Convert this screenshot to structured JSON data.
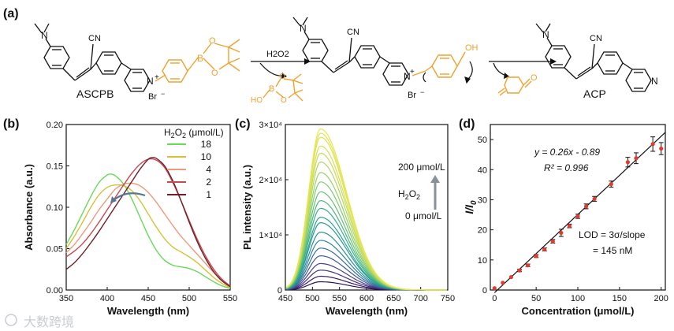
{
  "panel_labels": [
    "(a)",
    "(b)",
    "(c)",
    "(d)"
  ],
  "scheme": {
    "compound_start": "ASCPB",
    "compound_end": "ACP",
    "counterion": "Br",
    "reagent": "H2O2",
    "nme2": "N",
    "cn_label": "CN",
    "pyridinium_n": "N",
    "charge": "+",
    "ester_b": "B",
    "ester_o": "O",
    "byproduct_ho": "HO",
    "byproduct_b": "B",
    "byproduct_o": "O",
    "phenol_oh": "OH",
    "quinone_o": "O",
    "pyridine_n": "N",
    "minus": "−",
    "colors": {
      "orange": "#f0a22e"
    }
  },
  "chart_data": [
    {
      "type": "line",
      "panel": "(b)",
      "xlabel": "Wavelength (nm)",
      "ylabel": "Absorbance (a.u.)",
      "xlim": [
        350,
        550
      ],
      "ylim": [
        0.0,
        0.2
      ],
      "xticks": [
        "350",
        "400",
        "450",
        "500",
        "550"
      ],
      "yticks": [
        "0.00",
        "0.05",
        "0.10",
        "0.15",
        "0.20"
      ],
      "legend_title": "H2O2 (μmol/L)",
      "legend_placement": "top-right",
      "series": [
        {
          "name": "18",
          "color": "#6bd85a",
          "x": [
            350,
            360,
            370,
            380,
            390,
            400,
            405,
            410,
            420,
            430,
            440,
            450,
            460,
            470,
            480,
            490,
            500,
            510,
            520,
            530,
            540,
            550
          ],
          "y": [
            0.055,
            0.073,
            0.093,
            0.113,
            0.13,
            0.139,
            0.14,
            0.138,
            0.128,
            0.11,
            0.088,
            0.066,
            0.048,
            0.036,
            0.03,
            0.028,
            0.026,
            0.022,
            0.016,
            0.01,
            0.005,
            0.002
          ]
        },
        {
          "name": "10",
          "color": "#d6c23a",
          "x": [
            350,
            360,
            370,
            380,
            390,
            400,
            410,
            420,
            430,
            440,
            450,
            460,
            470,
            480,
            490,
            500,
            510,
            520,
            530,
            540,
            550
          ],
          "y": [
            0.05,
            0.065,
            0.082,
            0.1,
            0.115,
            0.124,
            0.127,
            0.126,
            0.12,
            0.108,
            0.092,
            0.076,
            0.062,
            0.052,
            0.046,
            0.04,
            0.033,
            0.024,
            0.015,
            0.008,
            0.003
          ]
        },
        {
          "name": "4",
          "color": "#ee9a7c",
          "x": [
            350,
            360,
            370,
            380,
            390,
            400,
            410,
            420,
            430,
            440,
            450,
            460,
            470,
            480,
            490,
            500,
            510,
            520,
            530,
            540,
            550
          ],
          "y": [
            0.045,
            0.055,
            0.068,
            0.082,
            0.097,
            0.11,
            0.122,
            0.128,
            0.129,
            0.126,
            0.118,
            0.106,
            0.092,
            0.078,
            0.065,
            0.054,
            0.043,
            0.032,
            0.021,
            0.012,
            0.005
          ]
        },
        {
          "name": "2",
          "color": "#c64a50",
          "x": [
            350,
            360,
            370,
            380,
            390,
            400,
            410,
            420,
            430,
            440,
            450,
            460,
            470,
            480,
            490,
            500,
            510,
            520,
            530,
            540,
            550
          ],
          "y": [
            0.04,
            0.047,
            0.056,
            0.068,
            0.082,
            0.097,
            0.112,
            0.127,
            0.141,
            0.152,
            0.158,
            0.157,
            0.148,
            0.13,
            0.108,
            0.084,
            0.061,
            0.041,
            0.025,
            0.013,
            0.005
          ]
        },
        {
          "name": "1",
          "color": "#6e1f2a",
          "x": [
            350,
            360,
            370,
            380,
            390,
            400,
            410,
            420,
            430,
            440,
            450,
            455,
            460,
            470,
            480,
            490,
            500,
            510,
            520,
            530,
            540,
            550
          ],
          "y": [
            0.025,
            0.033,
            0.044,
            0.057,
            0.071,
            0.086,
            0.101,
            0.116,
            0.131,
            0.146,
            0.158,
            0.16,
            0.159,
            0.15,
            0.132,
            0.108,
            0.082,
            0.058,
            0.038,
            0.022,
            0.011,
            0.004
          ]
        }
      ]
    },
    {
      "type": "line",
      "panel": "(c)",
      "xlabel": "Wavelength (nm)",
      "ylabel": "PL intensity (a.u.)",
      "xlim": [
        450,
        750
      ],
      "ylim": [
        0,
        30000
      ],
      "xticks": [
        "450",
        "500",
        "550",
        "600",
        "650",
        "700",
        "750"
      ],
      "yticks": [
        "0",
        "1×10⁴",
        "2×10⁴",
        "3×10⁴"
      ],
      "annotation": {
        "top": "200 μmol/L",
        "bottom": "0 μmol/L",
        "reagent": "H2O2"
      },
      "peak_wavelength_nm": 515,
      "peak_intensities": [
        1500,
        2500,
        3600,
        4800,
        6200,
        7600,
        9000,
        10500,
        12200,
        13200,
        14800,
        16200,
        17800,
        19600,
        21300,
        23200,
        24800,
        26100,
        27700,
        28400,
        29200
      ],
      "colors": [
        "#2b1150",
        "#3a1c6a",
        "#46307e",
        "#4a418a",
        "#3f5a95",
        "#37709a",
        "#2f839e",
        "#2b8e9c",
        "#2a9a96",
        "#2ea590",
        "#3aae88",
        "#4fb77f",
        "#66c177",
        "#7fc96f",
        "#99d068",
        "#b2d663",
        "#c6dc5e",
        "#d4df5a",
        "#dde256",
        "#e2e453",
        "#e8e751"
      ]
    },
    {
      "type": "scatter",
      "panel": "(d)",
      "xlabel": "Concentration (μmol/L)",
      "ylabel_main": "I/I",
      "ylabel_sub": "0",
      "xlim": [
        -5,
        205
      ],
      "ylim": [
        0,
        55
      ],
      "xticks": [
        "0",
        "50",
        "100",
        "150",
        "200"
      ],
      "yticks": [
        "0",
        "10",
        "20",
        "30",
        "40",
        "50"
      ],
      "equation": "y = 0.26x - 0.89",
      "r2_label": "R² = 0.996",
      "lod_line1": "LOD = 3σ/slope",
      "lod_line2": "= 145 nM",
      "fit": {
        "slope": 0.26,
        "intercept": -0.89
      },
      "marker_color": "#e23b2e",
      "x": [
        0,
        10,
        20,
        30,
        40,
        50,
        60,
        70,
        80,
        90,
        100,
        110,
        120,
        140,
        160,
        170,
        190,
        200
      ],
      "y": [
        0.6,
        2.4,
        4.3,
        6.5,
        8.2,
        11.3,
        13.5,
        16.2,
        19.0,
        21.3,
        24.5,
        27.8,
        30.3,
        35.2,
        42.5,
        43.8,
        48.5,
        47.0
      ],
      "err": [
        0.2,
        0.3,
        0.3,
        0.4,
        0.4,
        0.5,
        0.5,
        0.6,
        1.2,
        0.6,
        0.7,
        0.8,
        0.8,
        1.0,
        1.6,
        1.8,
        2.4,
        2.0
      ]
    }
  ],
  "watermark": "大数跨境"
}
